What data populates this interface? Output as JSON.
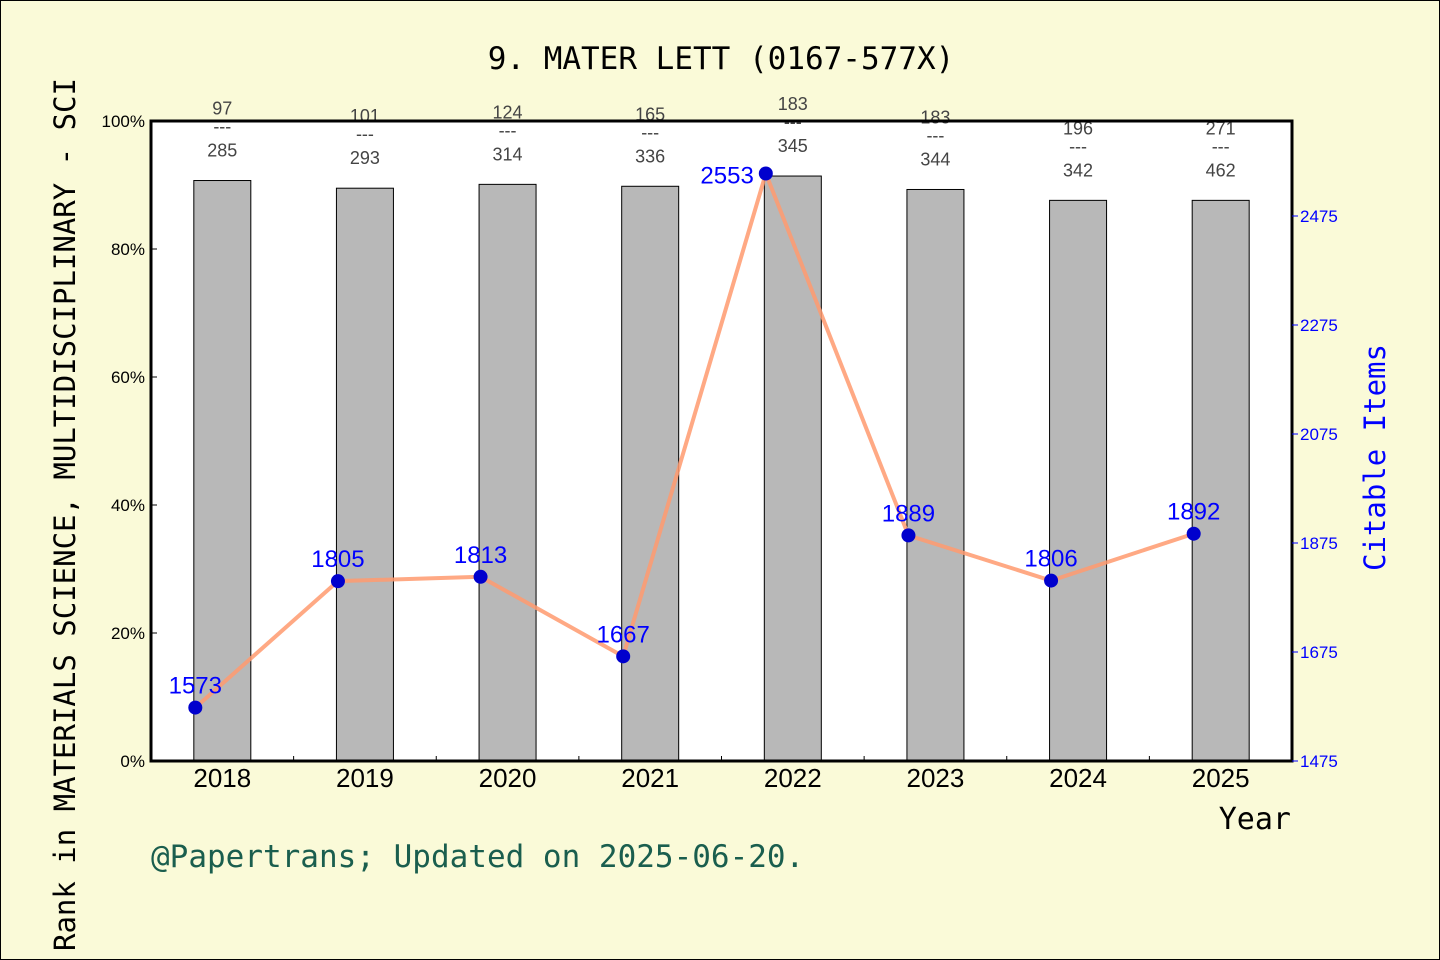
{
  "chart_data": {
    "type": "bar+line",
    "title": "9. MATER LETT (0167-577X)",
    "xlabel": "Year",
    "ylabel": "Rank in MATERIALS SCIENCE, MULTIDISCIPLINARY - SCI",
    "y2label": "Citable Items",
    "categories": [
      "2018",
      "2019",
      "2020",
      "2021",
      "2022",
      "2023",
      "2024",
      "2025"
    ],
    "bar_series": {
      "values": [
        90.7,
        89.5,
        90.1,
        89.8,
        91.4,
        89.3,
        87.6,
        87.6
      ],
      "color": "#b8b8b8"
    },
    "rank_labels": [
      {
        "rank": "97",
        "total": "285"
      },
      {
        "rank": "101",
        "total": "293"
      },
      {
        "rank": "124",
        "total": "314"
      },
      {
        "rank": "165",
        "total": "336"
      },
      {
        "rank": "183",
        "total": "345"
      },
      {
        "rank": "183",
        "total": "344"
      },
      {
        "rank": "196",
        "total": "342"
      },
      {
        "rank": "271",
        "total": "462"
      }
    ],
    "line_series": {
      "values": [
        1573,
        1805,
        1813,
        1667,
        2553,
        1889,
        1806,
        1892
      ],
      "color": "#ff9a6e",
      "marker_color": "#0000cd"
    },
    "ylim": [
      0,
      100
    ],
    "yticks": [
      "0%",
      "20%",
      "40%",
      "60%",
      "80%",
      "100%"
    ],
    "y2lim": [
      1475,
      2650
    ],
    "y2ticks": [
      "1475",
      "1675",
      "1875",
      "2075",
      "2275",
      "2475"
    ],
    "grid": false
  },
  "footer": "@Papertrans; Updated on 2025-06-20."
}
